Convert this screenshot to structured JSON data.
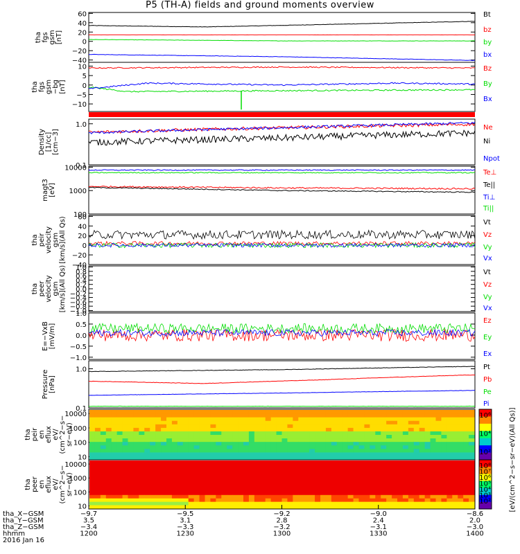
{
  "title": "P5 (TH-A) fields and ground moments overview",
  "date": "2016 Jan 16",
  "colors": {
    "black": "#000000",
    "red": "#ff0000",
    "green": "#00dd00",
    "blue": "#0000ff"
  },
  "chart_data": [
    {
      "type": "line",
      "ylabel": [
        "tha",
        "fgs",
        "gsm",
        "[nT]"
      ],
      "ylim": [
        -45,
        62
      ],
      "yticks": [
        "60",
        "40",
        "20",
        "0",
        "−20",
        "−40"
      ],
      "tick_values": [
        60,
        40,
        20,
        0,
        -20,
        -40
      ],
      "series": [
        {
          "name": "Bt",
          "color": "#000000",
          "points": [
            [
              0,
              34
            ],
            [
              0.3,
              31
            ],
            [
              0.6,
              36
            ],
            [
              1,
              43
            ]
          ]
        },
        {
          "name": "bz",
          "color": "#ff0000",
          "points": [
            [
              0,
              14
            ],
            [
              1,
              14
            ]
          ]
        },
        {
          "name": "by",
          "color": "#00dd00",
          "points": [
            [
              0,
              4
            ],
            [
              0.5,
              1
            ],
            [
              1,
              1
            ]
          ]
        },
        {
          "name": "bx",
          "color": "#0000ff",
          "points": [
            [
              0,
              -28
            ],
            [
              0.5,
              -33
            ],
            [
              1,
              -41
            ]
          ]
        }
      ]
    },
    {
      "type": "line",
      "ylabel": [
        "tha",
        "fgs",
        "gsm",
        "−bg",
        "[nT]"
      ],
      "ylim": [
        -14,
        12
      ],
      "yticks": [
        "10",
        "5",
        "0",
        "−5",
        "−10"
      ],
      "tick_values": [
        10,
        5,
        0,
        -5,
        -10
      ],
      "series": [
        {
          "name": "Bz",
          "color": "#ff0000",
          "points": [
            [
              0,
              9
            ],
            [
              0.5,
              9.5
            ],
            [
              1,
              9
            ]
          ]
        },
        {
          "name": "By",
          "color": "#00dd00",
          "points": [
            [
              0,
              -1
            ],
            [
              0.1,
              -3.5
            ],
            [
              0.5,
              -3
            ],
            [
              1,
              -2.5
            ]
          ]
        },
        {
          "name": "Bx",
          "color": "#0000ff",
          "points": [
            [
              0,
              -2
            ],
            [
              0.15,
              1
            ],
            [
              0.5,
              0
            ],
            [
              0.8,
              1
            ],
            [
              1,
              0.5
            ]
          ]
        }
      ]
    },
    {
      "type": "line",
      "ylabel": [
        "Density",
        "[1/cc]",
        "[cm−3]"
      ],
      "ylog": true,
      "ylim": [
        0.1,
        1.3
      ],
      "yticks": [
        "1.0",
        "0.1"
      ],
      "tick_values": [
        1.0,
        0.1
      ],
      "series": [
        {
          "name": "Ne",
          "color": "#ff0000",
          "points": [
            [
              0,
              0.62
            ],
            [
              0.5,
              0.8
            ],
            [
              1,
              0.98
            ]
          ]
        },
        {
          "name": "Ni",
          "color": "#000000",
          "points": [
            [
              0,
              0.35
            ],
            [
              0.5,
              0.45
            ],
            [
              1,
              0.6
            ]
          ]
        },
        {
          "name": "Npot",
          "color": "#0000ff",
          "points": [
            [
              0,
              0.6
            ],
            [
              0.5,
              0.8
            ],
            [
              1,
              1.05
            ]
          ]
        }
      ]
    },
    {
      "type": "line",
      "ylabel": [
        "magt3",
        "[eV]"
      ],
      "ylog": true,
      "ylim": [
        100,
        11000
      ],
      "yticks": [
        "10000",
        "1000",
        "100"
      ],
      "tick_values": [
        10000,
        1000,
        100
      ],
      "series": [
        {
          "name": "Te⊥",
          "color": "#ff0000",
          "points": [
            [
              0,
              1500
            ],
            [
              0.5,
              1300
            ],
            [
              1,
              1200
            ]
          ]
        },
        {
          "name": "Te||",
          "color": "#000000",
          "points": [
            [
              0,
              1350
            ],
            [
              0.5,
              1000
            ],
            [
              1,
              850
            ]
          ]
        },
        {
          "name": "Ti⊥",
          "color": "#0000ff",
          "points": [
            [
              0,
              7500
            ],
            [
              1,
              7500
            ]
          ]
        },
        {
          "name": "Ti||",
          "color": "#00dd00",
          "points": [
            [
              0,
              5800
            ],
            [
              1,
              5800
            ]
          ]
        }
      ]
    },
    {
      "type": "line",
      "ylabel": [
        "tha",
        "peir",
        "velocity",
        "gsm",
        "[km/s](All Qs)"
      ],
      "ylim": [
        -40,
        62
      ],
      "yticks": [
        "60",
        "40",
        "20",
        "0",
        "−20",
        "−40"
      ],
      "tick_values": [
        60,
        40,
        20,
        0,
        -20,
        -40
      ],
      "series": [
        {
          "name": "Vt",
          "color": "#000000",
          "points": [
            [
              0,
              22
            ],
            [
              1,
              22
            ]
          ]
        },
        {
          "name": "Vz",
          "color": "#ff0000",
          "points": [
            [
              0,
              4
            ],
            [
              1,
              4
            ]
          ]
        },
        {
          "name": "Vy",
          "color": "#00dd00",
          "points": [
            [
              0,
              0
            ],
            [
              1,
              0
            ]
          ]
        },
        {
          "name": "Vx",
          "color": "#0000ff",
          "points": [
            [
              0,
              0
            ],
            [
              1,
              0
            ]
          ]
        }
      ]
    },
    {
      "type": "line",
      "ylabel": [
        "tha",
        "peer",
        "velocity",
        "gsm",
        "[km/s](All Qs)"
      ],
      "ylim": [
        -1.05,
        1.05
      ],
      "yticks": [
        "1.0",
        "0.8",
        "0.6",
        "0.4",
        "0.2",
        "0.0",
        "−0.2",
        "−0.4",
        "−0.6",
        "−0.8",
        "−1.0"
      ],
      "tick_values": [
        1.0,
        0.8,
        0.6,
        0.4,
        0.2,
        0.0,
        -0.2,
        -0.4,
        -0.6,
        -0.8,
        -1.0
      ],
      "series": [
        {
          "name": "Vt",
          "color": "#000000",
          "points": []
        },
        {
          "name": "Vz",
          "color": "#ff0000",
          "points": []
        },
        {
          "name": "Vy",
          "color": "#00dd00",
          "points": []
        },
        {
          "name": "Vx",
          "color": "#0000ff",
          "points": []
        }
      ]
    },
    {
      "type": "line",
      "ylabel": [
        "E=−VxB",
        "[mV/m]"
      ],
      "ylim": [
        -1.1,
        1.0
      ],
      "yticks": [
        "1.0",
        "0.5",
        "0.0",
        "−0.5",
        "−1.0"
      ],
      "tick_values": [
        1.0,
        0.5,
        0.0,
        -0.5,
        -1.0
      ],
      "series": [
        {
          "name": "Ez",
          "color": "#ff0000",
          "points": [
            [
              0,
              0
            ],
            [
              1,
              0
            ]
          ]
        },
        {
          "name": "Ey",
          "color": "#00dd00",
          "points": [
            [
              0,
              0.3
            ],
            [
              1,
              0.3
            ]
          ]
        },
        {
          "name": "Ex",
          "color": "#0000ff",
          "points": [
            [
              0,
              0.1
            ],
            [
              1,
              0.1
            ]
          ]
        }
      ]
    },
    {
      "type": "line",
      "ylabel": [
        "Pressure",
        "[nPa]"
      ],
      "ylog": true,
      "ylim": [
        0.1,
        1.6
      ],
      "yticks": [
        "1.0",
        "0.1"
      ],
      "tick_values": [
        1.0,
        0.1
      ],
      "series": [
        {
          "name": "Pt",
          "color": "#000000",
          "points": [
            [
              0,
              0.85
            ],
            [
              0.5,
              0.95
            ],
            [
              1,
              1.15
            ]
          ]
        },
        {
          "name": "Pb",
          "color": "#ff0000",
          "points": [
            [
              0,
              0.48
            ],
            [
              0.3,
              0.42
            ],
            [
              0.6,
              0.52
            ],
            [
              1,
              0.7
            ]
          ]
        },
        {
          "name": "Pe",
          "color": "#00dd00",
          "points": [
            [
              0,
              0.11
            ],
            [
              1,
              0.11
            ]
          ]
        },
        {
          "name": "Pi",
          "color": "#0000ff",
          "points": [
            [
              0,
              0.21
            ],
            [
              0.5,
              0.24
            ],
            [
              1,
              0.28
            ]
          ]
        }
      ]
    },
    {
      "type": "heatmap",
      "ylabel": [
        "tha",
        "peir",
        "en",
        "eflux",
        "eV/",
        "(cm^2−s−",
        "sr−eV)"
      ],
      "ylog": true,
      "ylim": [
        6,
        20000
      ],
      "yticks": [
        "10000",
        "1000",
        "100",
        "10"
      ],
      "tick_values": [
        10000,
        1000,
        100,
        10
      ],
      "colorbar_ticks": [
        "10⁶",
        "10⁴",
        "10²"
      ]
    },
    {
      "type": "heatmap",
      "ylabel": [
        "tha",
        "peer",
        "en",
        "eflux",
        "eV/",
        "(cm^2−s−",
        "sr−eV)"
      ],
      "ylog": true,
      "ylim": [
        6,
        20000
      ],
      "yticks": [
        "10000",
        "1000",
        "100",
        "10"
      ],
      "tick_values": [
        10000,
        1000,
        100,
        10
      ],
      "colorbar_ticks": [
        "10⁸",
        "10⁷",
        "10⁶",
        "10⁵",
        "10⁴",
        "10³",
        "10²"
      ]
    }
  ],
  "colorbar_label": "[eV/(cm^2−s−sr−eV)(All Qs)]",
  "xaxis": {
    "rows": [
      {
        "label": "tha_X−GSM",
        "values": [
          "−9.7",
          "−9.5",
          "−9.2",
          "−9.0",
          "−8.6"
        ]
      },
      {
        "label": "tha_Y−GSM",
        "values": [
          "3.5",
          "3.1",
          "2.8",
          "2.4",
          "2.0"
        ]
      },
      {
        "label": "tha_Z−GSM",
        "values": [
          "−3.4",
          "−3.3",
          "−3.2",
          "−3.1",
          "−3.0"
        ]
      },
      {
        "label": "hhmm",
        "values": [
          "1200",
          "1230",
          "1300",
          "1330",
          "1400"
        ]
      }
    ]
  }
}
